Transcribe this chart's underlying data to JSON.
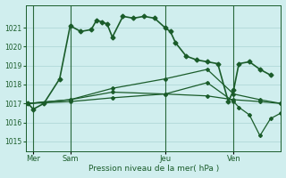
{
  "bg_color": "#d0eeee",
  "grid_color": "#b0d8d8",
  "line_color": "#1a5c2a",
  "xlabel": "Pression niveau de la mer( hPa )",
  "ylim": [
    1014.5,
    1022.2
  ],
  "yticks": [
    1015,
    1016,
    1017,
    1018,
    1019,
    1020,
    1021
  ],
  "day_labels": [
    "Mer",
    "Sam",
    "Jeu",
    "Ven"
  ],
  "day_positions": [
    0.5,
    4.0,
    13.0,
    19.5
  ],
  "vline_positions": [
    0.5,
    4.0,
    13.0,
    19.5
  ],
  "xlim": [
    -0.2,
    24.0
  ],
  "series": [
    {
      "x": [
        0,
        0.5,
        1.5,
        3,
        4,
        5,
        6,
        6.5,
        7,
        7.5,
        8,
        9,
        10,
        11,
        12,
        13,
        13.5,
        14,
        15,
        16,
        17,
        18,
        19,
        19.5,
        20,
        21,
        22,
        23
      ],
      "y": [
        1017.0,
        1016.7,
        1017.0,
        1018.3,
        1021.1,
        1020.8,
        1020.9,
        1021.4,
        1021.3,
        1021.2,
        1020.5,
        1021.6,
        1021.5,
        1021.6,
        1021.5,
        1021.0,
        1020.8,
        1020.2,
        1019.5,
        1019.3,
        1019.2,
        1019.1,
        1017.1,
        1017.7,
        1019.1,
        1019.2,
        1018.8,
        1018.5
      ],
      "lw": 1.2,
      "marker": "D",
      "ms": 2.5
    },
    {
      "x": [
        0,
        4,
        8,
        13,
        17,
        19.5,
        22,
        24
      ],
      "y": [
        1017.0,
        1017.2,
        1017.8,
        1018.3,
        1018.8,
        1017.5,
        1017.2,
        1017.0
      ],
      "lw": 0.9,
      "marker": "D",
      "ms": 2.0
    },
    {
      "x": [
        0,
        4,
        8,
        13,
        17,
        19.5,
        22,
        24
      ],
      "y": [
        1017.0,
        1017.1,
        1017.3,
        1017.5,
        1017.4,
        1017.2,
        1017.1,
        1017.0
      ],
      "lw": 0.9,
      "marker": "D",
      "ms": 2.0
    },
    {
      "x": [
        0,
        4,
        8,
        13,
        17,
        19.5,
        20,
        21,
        22,
        23,
        24
      ],
      "y": [
        1017.0,
        1017.2,
        1017.6,
        1017.5,
        1018.1,
        1017.1,
        1016.8,
        1016.4,
        1015.3,
        1016.2,
        1016.5
      ],
      "lw": 0.9,
      "marker": "D",
      "ms": 2.0
    }
  ]
}
